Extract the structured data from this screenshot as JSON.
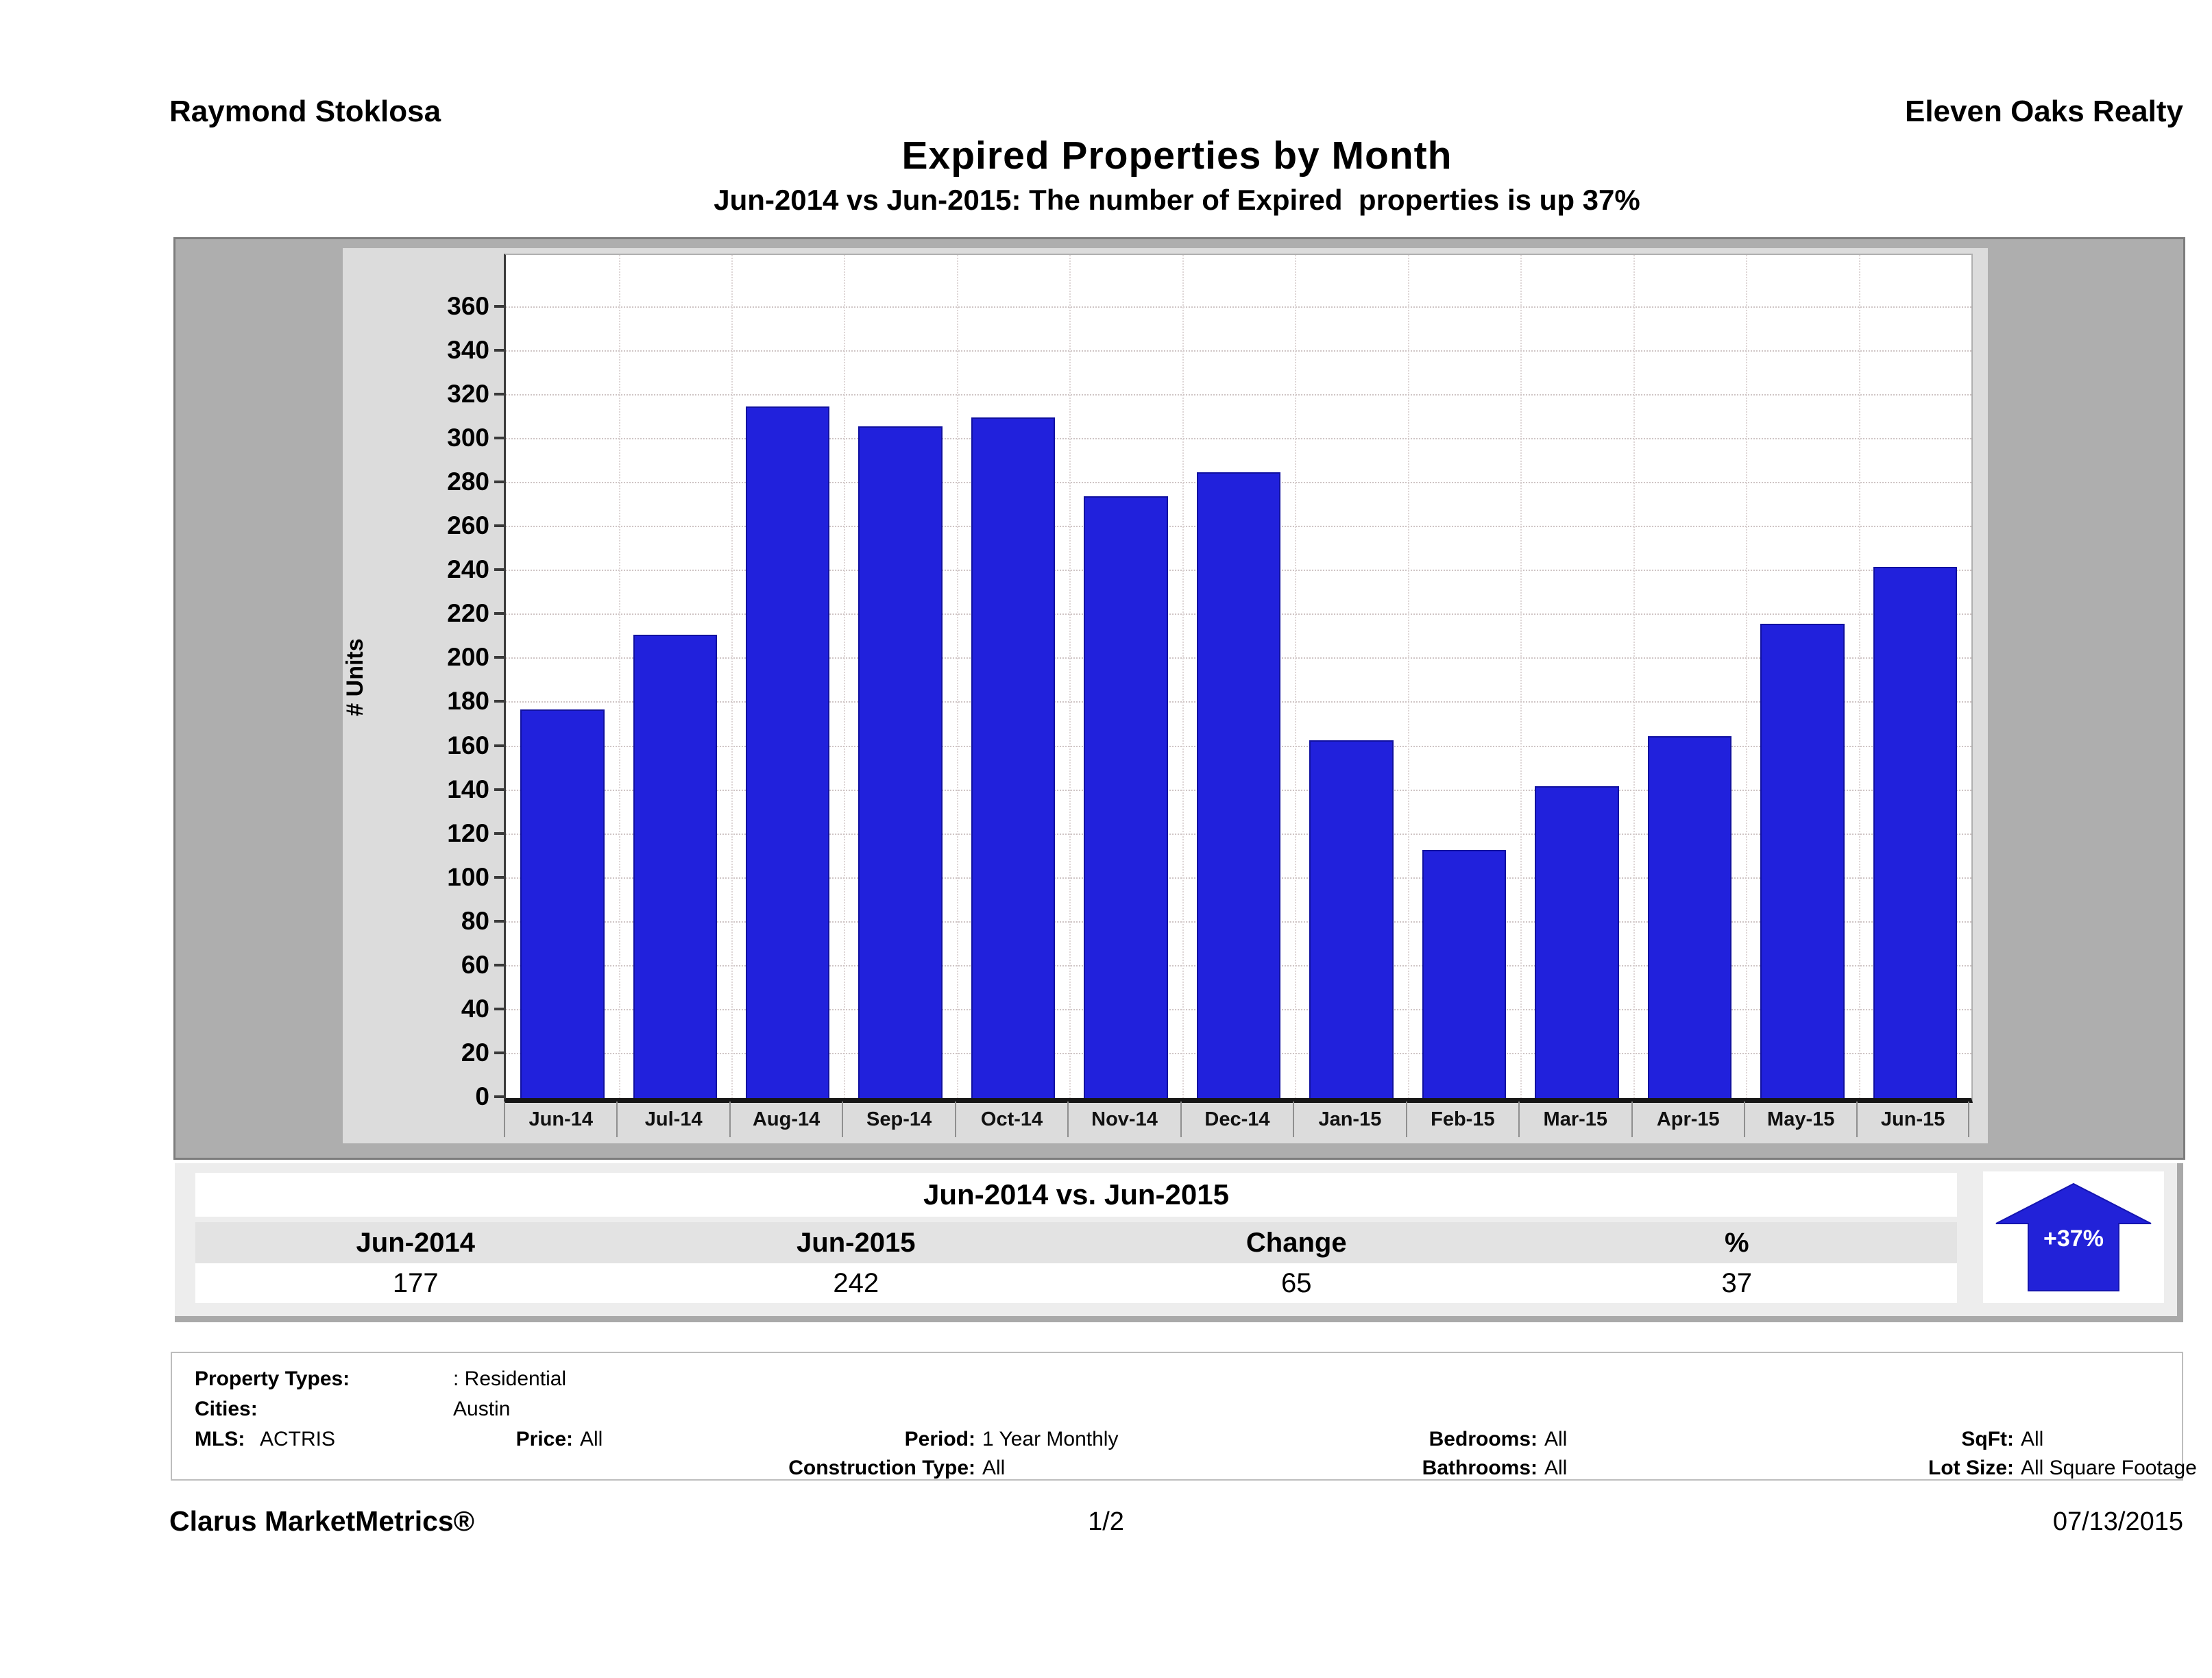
{
  "header": {
    "agent_name": "Raymond Stoklosa",
    "company_name": "Eleven Oaks Realty",
    "title": "Expired Properties by Month",
    "subtitle": "Jun-2014 vs Jun-2015: The number of Expired  properties is up 37%"
  },
  "chart_data": {
    "type": "bar",
    "categories": [
      "Jun-14",
      "Jul-14",
      "Aug-14",
      "Sep-14",
      "Oct-14",
      "Nov-14",
      "Dec-14",
      "Jan-15",
      "Feb-15",
      "Mar-15",
      "Apr-15",
      "May-15",
      "Jun-15"
    ],
    "values": [
      177,
      211,
      315,
      306,
      310,
      274,
      285,
      163,
      113,
      142,
      165,
      216,
      242
    ],
    "title": "Expired Properties by Month",
    "xlabel": "",
    "ylabel": "# Units",
    "ylim": [
      0,
      384
    ],
    "ytick_step": 20,
    "ytick_max": 360,
    "grid": true,
    "legend_position": "none",
    "bar_color": "#2121dc",
    "bar_border_color": "#1111a0"
  },
  "summary_table": {
    "title": "Jun-2014 vs. Jun-2015",
    "columns": [
      "Jun-2014",
      "Jun-2015",
      "Change",
      "%"
    ],
    "values": [
      "177",
      "242",
      "65",
      "37"
    ],
    "arrow_label": "+37%",
    "arrow_color": "#2222d8"
  },
  "filters": {
    "property_types": {
      "label": "Property Types:",
      "value": ": Residential"
    },
    "cities": {
      "label": "Cities:",
      "value": "Austin"
    },
    "mls": {
      "label": "MLS:",
      "value": "ACTRIS"
    },
    "price": {
      "label": "Price:",
      "value": "All"
    },
    "period": {
      "label": "Period:",
      "value": "1 Year Monthly"
    },
    "construction_type": {
      "label": "Construction Type:",
      "value": "All"
    },
    "bedrooms": {
      "label": "Bedrooms:",
      "value": "All"
    },
    "bathrooms": {
      "label": "Bathrooms:",
      "value": "All"
    },
    "sqft": {
      "label": "SqFt:",
      "value": "All"
    },
    "lot_size": {
      "label": "Lot Size:",
      "value": "All Square Footage"
    }
  },
  "footer": {
    "brand": "Clarus MarketMetrics®",
    "page": "1/2",
    "date": "07/13/2015"
  }
}
